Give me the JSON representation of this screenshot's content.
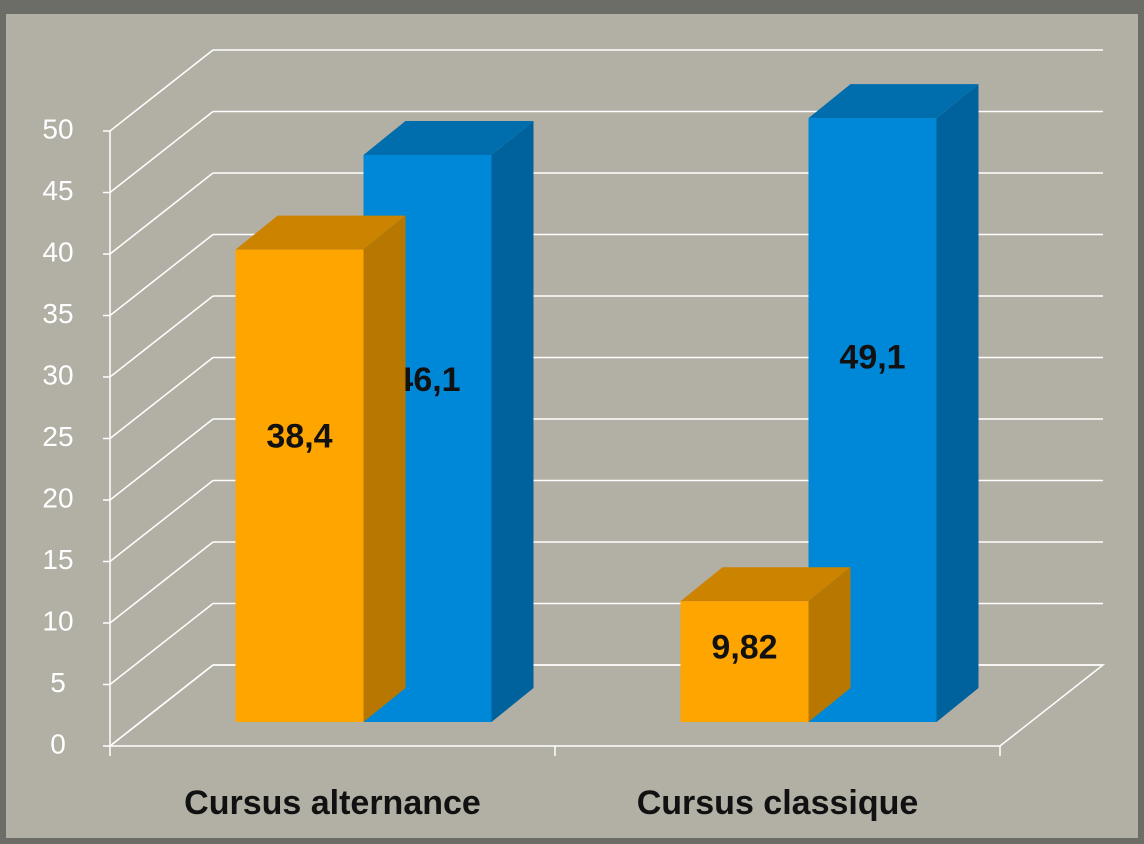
{
  "chart_data": {
    "type": "bar3d",
    "categories": [
      "Cursus alternance",
      "Cursus classique"
    ],
    "series": [
      {
        "color": "#ffa500",
        "values": [
          38.4,
          9.82
        ],
        "value_labels": [
          "38,4",
          "9,82"
        ]
      },
      {
        "color": "#0088d8",
        "values": [
          46.1,
          49.1
        ],
        "value_labels": [
          "46,1",
          "49,1"
        ]
      }
    ],
    "ylim": [
      0,
      50
    ],
    "yticks": [
      0,
      5,
      10,
      15,
      20,
      25,
      30,
      35,
      40,
      45,
      50
    ],
    "grid": true
  }
}
